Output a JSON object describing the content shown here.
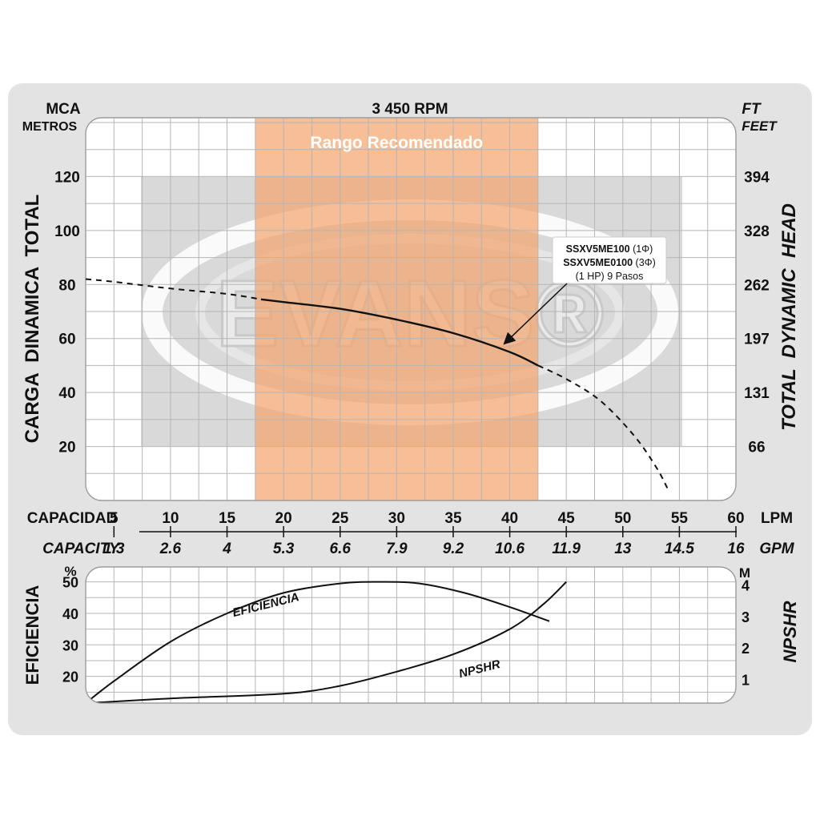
{
  "chart_data": [
    {
      "type": "line",
      "title": "3 450 RPM",
      "left_unit": "MCA",
      "left_unit_sub": "METROS",
      "right_unit": "FT",
      "right_unit_sub": "FEET",
      "ylabel": "CARGA  DINAMICA  TOTAL",
      "ylabel_right": "TOTAL  DYNAMIC  HEAD",
      "band_label": "Rango Recomendado",
      "band_lpm": [
        17.5,
        42.5
      ],
      "xlim": [
        2.5,
        60
      ],
      "ylim": [
        0,
        140
      ],
      "grid": true,
      "left_ticks": [
        "20",
        "40",
        "60",
        "80",
        "100",
        "120"
      ],
      "left_tick_values": [
        20,
        40,
        60,
        80,
        100,
        120
      ],
      "right_ticks": [
        "66",
        "131",
        "197",
        "262",
        "328",
        "394"
      ],
      "right_tick_values": [
        20,
        40,
        60,
        80,
        100,
        120
      ],
      "watermark": "EVANS®",
      "model_label": {
        "line1_bold": "SSXV5ME100",
        "line1_rest": " (1Φ)",
        "line2_bold": "SSXV5ME0100",
        "line2_rest": " (3Φ)",
        "line3": "(1 HP) 9 Pasos",
        "arrow_to": [
          39.5,
          58
        ]
      },
      "series": [
        {
          "style": "dashed",
          "x": [
            2.5,
            5,
            10,
            15,
            18
          ],
          "y": [
            82,
            81,
            78.5,
            76.5,
            74.5
          ]
        },
        {
          "style": "solid",
          "x": [
            18,
            20,
            25,
            30,
            35,
            40,
            42.5
          ],
          "y": [
            74.5,
            73.5,
            71,
            67,
            62,
            55,
            50
          ]
        },
        {
          "style": "dashed",
          "x": [
            42.5,
            45,
            48,
            51,
            53,
            54
          ],
          "y": [
            50,
            45,
            37,
            24,
            12,
            4
          ]
        }
      ]
    },
    {
      "type": "table",
      "capacity_label": "CAPACIDAD",
      "capacity_label_en": "CAPACITY",
      "lpm_unit": "LPM",
      "gpm_unit": "GPM",
      "lpm": [
        "5",
        "10",
        "15",
        "20",
        "25",
        "30",
        "35",
        "40",
        "45",
        "50",
        "55",
        "60"
      ],
      "lpm_values": [
        5,
        10,
        15,
        20,
        25,
        30,
        35,
        40,
        45,
        50,
        55,
        60
      ],
      "gpm": [
        "1.3",
        "2.6",
        "4",
        "5.3",
        "6.6",
        "7.9",
        "9.2",
        "10.6",
        "11.9",
        "13",
        "14.5",
        "16"
      ]
    },
    {
      "type": "line",
      "ylabel": "EFICIENCIA",
      "ylabel_right": "NPSHR",
      "left_unit": "%",
      "right_unit": "M",
      "xlim": [
        2.5,
        60
      ],
      "ylim": [
        10,
        56
      ],
      "grid": true,
      "left_ticks": [
        "20",
        "30",
        "40",
        "50"
      ],
      "left_tick_values": [
        20,
        30,
        40,
        50
      ],
      "right_ticks": [
        "1",
        "2",
        "3",
        "4"
      ],
      "right_tick_values": [
        1,
        2,
        3,
        4
      ],
      "right_ylim": [
        0.1,
        4.7
      ],
      "series": [
        {
          "name": "EFICIENCIA",
          "x": [
            2.5,
            5,
            10,
            15,
            20,
            25,
            28.5,
            32,
            36,
            40,
            43.5
          ],
          "y": [
            11.5,
            18.5,
            31,
            40,
            46.5,
            49.5,
            50,
            49.5,
            46.5,
            42,
            37.5
          ]
        },
        {
          "name": "NPSHR",
          "axis": "right",
          "x": [
            2.5,
            10,
            20,
            25,
            30,
            35,
            40,
            43,
            45
          ],
          "y": [
            0.25,
            0.4,
            0.55,
            0.8,
            1.25,
            1.8,
            2.6,
            3.4,
            4.1
          ]
        }
      ]
    }
  ]
}
